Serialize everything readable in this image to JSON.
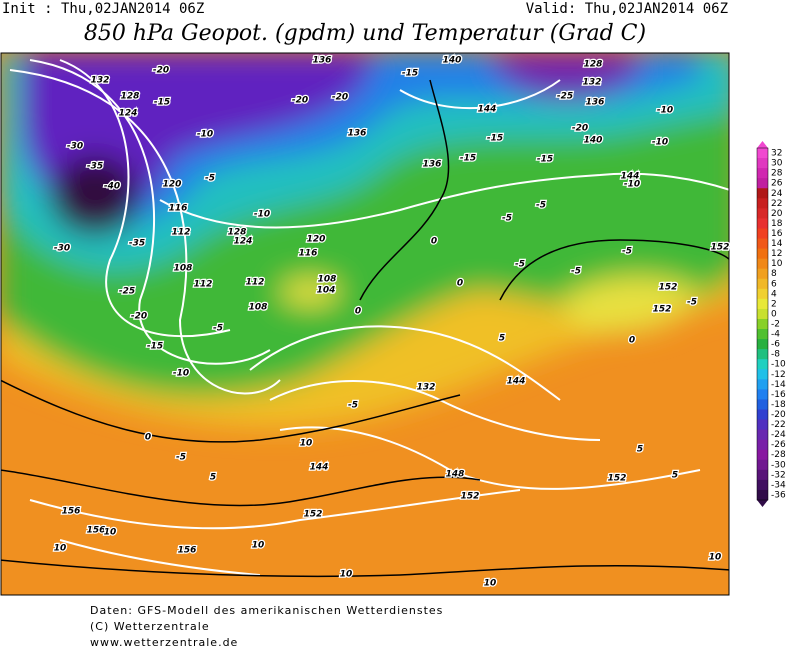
{
  "header": {
    "init": "Init : Thu,02JAN2014 06Z",
    "valid": "Valid: Thu,02JAN2014 06Z",
    "title": "850 hPa Geopot. (gpdm) und Temperatur (Grad C)"
  },
  "legend": {
    "labels": [
      32,
      30,
      28,
      26,
      24,
      22,
      20,
      18,
      16,
      14,
      12,
      10,
      8,
      6,
      4,
      2,
      0,
      -2,
      -4,
      -6,
      -8,
      -10,
      -12,
      -14,
      -16,
      -18,
      -20,
      -22,
      -24,
      -26,
      -28,
      -30,
      -32,
      -34,
      -36
    ],
    "colors": [
      "#f048d0",
      "#e038c0",
      "#d028b0",
      "#c020a0",
      "#b01818",
      "#c82020",
      "#d82828",
      "#e83030",
      "#f04020",
      "#f05818",
      "#f07010",
      "#f08818",
      "#f0a020",
      "#f0b828",
      "#f0d030",
      "#e8e838",
      "#c8e030",
      "#88d028",
      "#50c030",
      "#28b040",
      "#20c080",
      "#20d0c0",
      "#20c0e8",
      "#20a0f0",
      "#2080f0",
      "#2060e0",
      "#3040d0",
      "#5030c0",
      "#6828b0",
      "#7820a8",
      "#8818a0",
      "#701890",
      "#581478",
      "#401060",
      "#300c48"
    ]
  },
  "contour_labels": [
    132,
    128,
    124,
    -30,
    -35,
    -40,
    120,
    116,
    112,
    -35,
    -30,
    108,
    112,
    -25,
    -20,
    -15,
    -10,
    -5,
    108,
    108,
    104,
    112,
    0,
    -5,
    5,
    10,
    144,
    152,
    156,
    156,
    156,
    10,
    10,
    10,
    10,
    10,
    10,
    148,
    152,
    152,
    144,
    132,
    -5,
    0,
    -5,
    -5,
    -5,
    -5,
    -5,
    152,
    152,
    152,
    -5,
    -10,
    -10,
    -10,
    144,
    -15,
    -15,
    -15,
    144,
    136,
    140,
    136,
    132,
    128,
    -20,
    -25,
    140,
    -20,
    -15,
    -10,
    -5,
    -15,
    136,
    -20,
    -20,
    136,
    -10,
    124,
    128,
    120,
    116,
    0,
    0,
    5,
    0,
    5,
    5
  ],
  "footer": [
    "Daten: GFS-Modell des amerikanischen Wetterdienstes",
    "(C) Wetterzentrale",
    "www.wetterzentrale.de"
  ]
}
